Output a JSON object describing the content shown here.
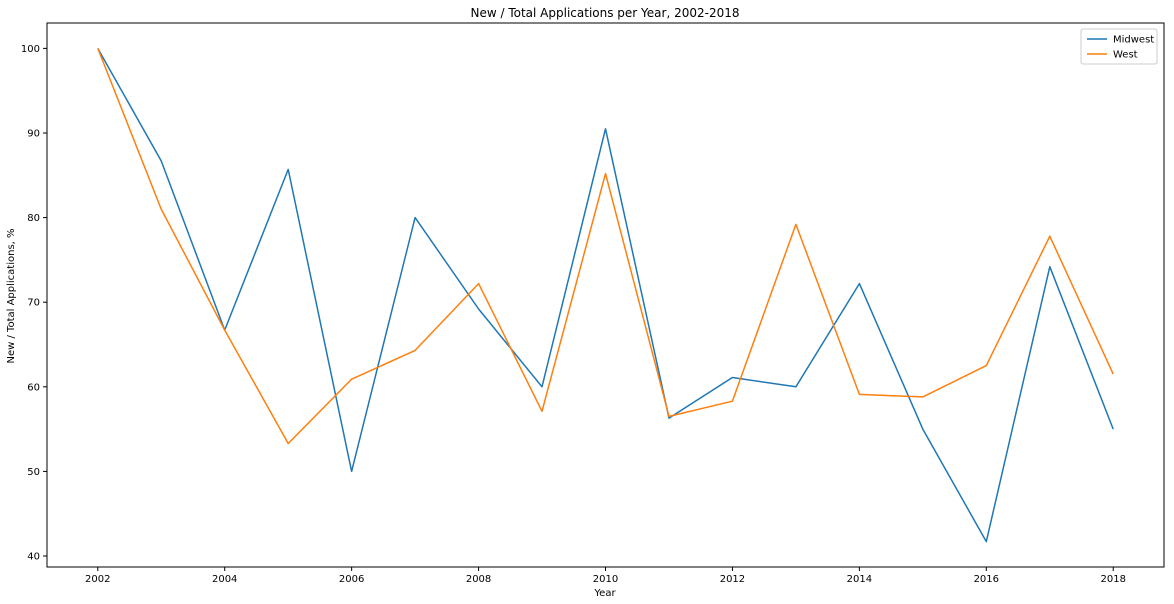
{
  "chart_data": {
    "type": "line",
    "title": "New / Total Applications per Year, 2002-2018",
    "xlabel": "Year",
    "ylabel": "New / Total Applications, %",
    "x": [
      2002,
      2003,
      2004,
      2005,
      2006,
      2007,
      2008,
      2009,
      2010,
      2011,
      2012,
      2013,
      2014,
      2015,
      2016,
      2017,
      2018
    ],
    "xticks": [
      2002,
      2004,
      2006,
      2008,
      2010,
      2012,
      2014,
      2016,
      2018
    ],
    "yticks": [
      40,
      50,
      60,
      70,
      80,
      90,
      100
    ],
    "xlim": [
      2001.2,
      2018.8
    ],
    "ylim": [
      38.7,
      103.0
    ],
    "grid": false,
    "legend_position": "top-right",
    "series": [
      {
        "name": "Midwest",
        "color": "#1f77b4",
        "values": [
          100,
          86.7,
          66.7,
          85.7,
          50.0,
          80.0,
          69.2,
          60.0,
          90.5,
          56.3,
          61.1,
          60.0,
          72.2,
          55.0,
          41.7,
          74.2,
          55.0
        ]
      },
      {
        "name": "West",
        "color": "#ff7f0e",
        "values": [
          100,
          81.0,
          66.7,
          53.3,
          60.9,
          64.3,
          72.2,
          57.1,
          85.2,
          56.5,
          58.3,
          79.2,
          59.1,
          58.8,
          62.5,
          77.8,
          61.5
        ]
      }
    ]
  }
}
